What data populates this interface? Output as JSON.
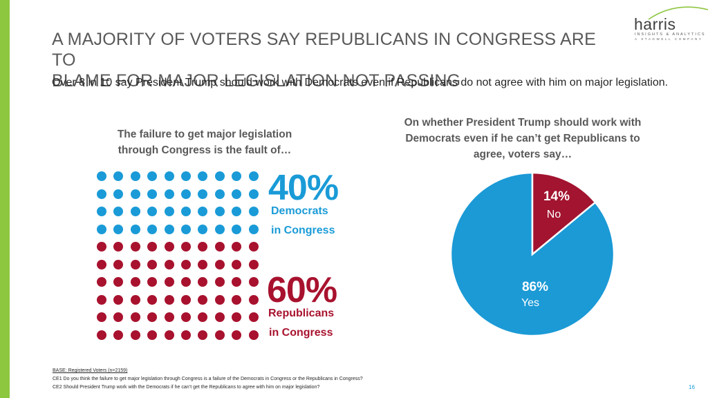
{
  "colors": {
    "blue": "#1a9bd7",
    "red": "#a8122e",
    "green": "#8dc63f",
    "pie_blue": "#1b9ad6",
    "pie_red": "#a2142f"
  },
  "logo": {
    "word": "harris",
    "tagline": "INSIGHTS & ANALYTICS",
    "subtag": "A STAGWELL COMPANY"
  },
  "title": {
    "line1": "A MAJORITY OF VOTERS SAY REPUBLICANS IN CONGRESS ARE TO",
    "line2": "BLAME FOR MAJOR LEGISLATION NOT PASSING"
  },
  "subtitle": "Over 8 in 10 say President Trump should work with Democrats even if Republicans do not agree with him on major legislation.",
  "left_heading": "The failure to get major legislation through Congress is the fault of…",
  "right_heading": "On whether President Trump should work with Democrats even if he can’t get Republicans to agree, voters say…",
  "chart_data": [
    {
      "type": "bar",
      "title": "The failure to get major legislation through Congress is the fault of…",
      "style": "dot-grid",
      "total_dots": 100,
      "categories": [
        "Democrats in Congress",
        "Republicans in Congress"
      ],
      "values": [
        40,
        60
      ],
      "labels": {
        "dem_pct": "40%",
        "dem_line1": "Democrats",
        "dem_line2": "in Congress",
        "rep_pct": "60%",
        "rep_line1": "Republicans",
        "rep_line2": "in Congress"
      }
    },
    {
      "type": "pie",
      "title": "On whether President Trump should work with Democrats even if he can’t get Republicans to agree, voters say…",
      "categories": [
        "No",
        "Yes"
      ],
      "values": [
        14,
        86
      ],
      "labels": {
        "no_pct": "14%",
        "no_name": "No",
        "yes_pct": "86%",
        "yes_name": "Yes"
      }
    }
  ],
  "footer": {
    "base": "BASE: Registered Voters (n=2159)",
    "q1": "CE1 Do you think the failure to get major legislation through Congress is a failure of the Democrats in Congress or the Republicans in Congress?",
    "q2": "CE2 Should President Trump work with the Democrats if he can’t get the Republicans to agree with him on major legislation?"
  },
  "page_number": "16"
}
